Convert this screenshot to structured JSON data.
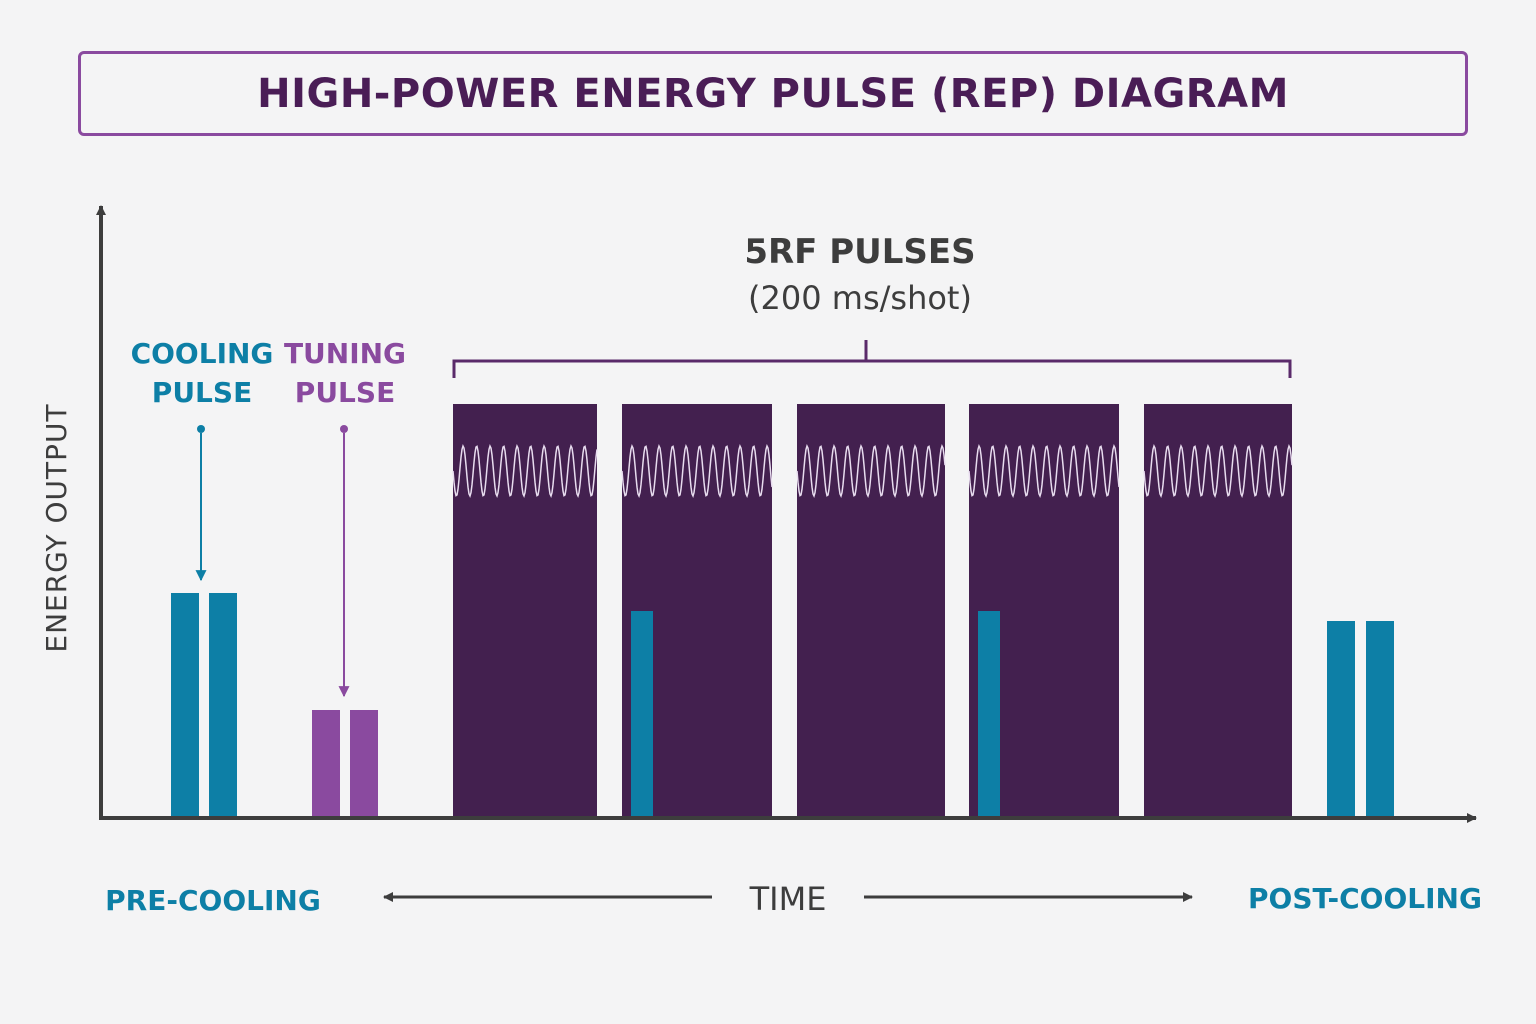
{
  "title": "HIGH-POWER ENERGY PULSE (REP) DIAGRAM",
  "axes": {
    "y_label": "ENERGY OUTPUT",
    "x_label": "TIME"
  },
  "rf_group": {
    "title": "5RF PULSES",
    "subtitle": "(200 ms/shot)",
    "pulse_count": 5
  },
  "labels": {
    "cooling_pulse_line1": "COOLING",
    "cooling_pulse_line2": "PULSE",
    "tuning_pulse_line1": "TUNING",
    "tuning_pulse_line2": "PULSE",
    "pre_cooling": "PRE-COOLING",
    "post_cooling": "POST-COOLING"
  },
  "colors": {
    "cooling": "#0d7fa6",
    "tuning": "#8a4a9f",
    "rf_pulse": "#43204f",
    "axis": "#3d3d3d",
    "title": "#4a1d56"
  },
  "relative_levels": {
    "rf_pulse": 1.0,
    "cooling_pre": 0.54,
    "tuning": 0.25,
    "cooling_inside_rf": 0.49,
    "cooling_post": 0.47
  }
}
